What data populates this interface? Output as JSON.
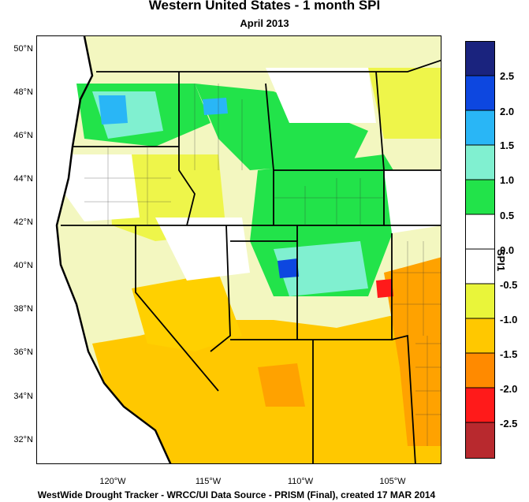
{
  "title": "Western United States - 1 month SPI",
  "subtitle": "April 2013",
  "footer": "WestWide Drought Tracker - WRCC/UI  Data Source - PRISM (Final), created 17 MAR 2014",
  "colorbar": {
    "title": "SPI1",
    "labels": [
      "2.5",
      "2.0",
      "1.5",
      "1.0",
      "0.5",
      "0.0",
      "-0.5",
      "-1.0",
      "-1.5",
      "-2.0",
      "-2.5"
    ],
    "colors": [
      "#1a237e",
      "#0d47e0",
      "#29b6f6",
      "#80f0d0",
      "#22e34a",
      "#ffffff",
      "#ffffff",
      "#e9f53a",
      "#ffc800",
      "#ff8a00",
      "#ff1a1a",
      "#b8292e"
    ]
  },
  "axes": {
    "lat_labels": [
      "50°N",
      "48°N",
      "46°N",
      "44°N",
      "42°N",
      "40°N",
      "38°N",
      "36°N",
      "34°N",
      "32°N"
    ],
    "lon_labels": [
      "120°W",
      "115°W",
      "110°W",
      "105°W"
    ]
  }
}
